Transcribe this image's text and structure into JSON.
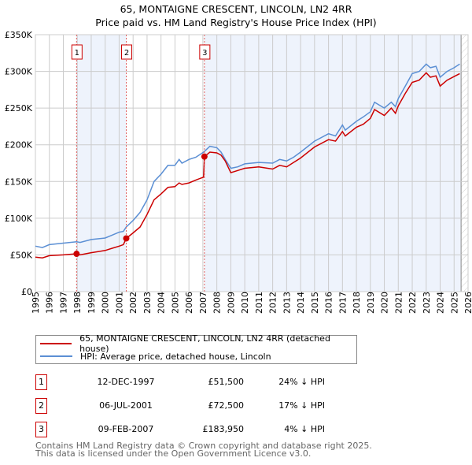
{
  "title_line1": "65, MONTAIGNE CRESCENT, LINCOLN, LN2 4RR",
  "title_line2": "Price paid vs. HM Land Registry's House Price Index (HPI)",
  "chart_data": {
    "type": "line",
    "title": "65, MONTAIGNE CRESCENT, LINCOLN, LN2 4RR — Price paid vs. HM Land Registry's House Price Index (HPI)",
    "xlim": [
      1995,
      2026
    ],
    "ylim": [
      0,
      350000
    ],
    "x_ticks": [
      "1995",
      "1996",
      "1997",
      "1998",
      "1999",
      "2000",
      "2001",
      "2002",
      "2003",
      "2004",
      "2005",
      "2006",
      "2007",
      "2008",
      "2009",
      "2010",
      "2011",
      "2012",
      "2013",
      "2014",
      "2015",
      "2016",
      "2017",
      "2018",
      "2019",
      "2020",
      "2021",
      "2022",
      "2023",
      "2024",
      "2025",
      "2026"
    ],
    "y_ticks": [
      {
        "v": 0,
        "label": "£0"
      },
      {
        "v": 50000,
        "label": "£50K"
      },
      {
        "v": 100000,
        "label": "£100K"
      },
      {
        "v": 150000,
        "label": "£150K"
      },
      {
        "v": 200000,
        "label": "£200K"
      },
      {
        "v": 250000,
        "label": "£250K"
      },
      {
        "v": 300000,
        "label": "£300K"
      },
      {
        "v": 350000,
        "label": "£350K"
      }
    ],
    "grid": true,
    "colors": {
      "property": "#cc0000",
      "hpi": "#5b8fd4",
      "shade": "#eef3fc",
      "marker_line": "#e06060"
    },
    "shaded_ranges": [
      [
        1997.95,
        2001.51
      ],
      [
        2007.11,
        2025.5
      ]
    ],
    "hatched_from": 2025.5,
    "series": [
      {
        "name": "65, MONTAIGNE CRESCENT, LINCOLN, LN2 4RR (detached house)",
        "key": "property",
        "x": [
          1995,
          1995.5,
          1996,
          1997,
          1997.95,
          1998.2,
          1999,
          2000,
          2000.5,
          2001,
          2001.3,
          2001.51,
          2002,
          2002.5,
          2003,
          2003.5,
          2004,
          2004.5,
          2005,
          2005.3,
          2005.5,
          2006,
          2006.5,
          2007.05,
          2007.11,
          2007.5,
          2008,
          2008.3,
          2008.6,
          2009,
          2009.5,
          2010,
          2011,
          2012,
          2012.5,
          2013,
          2013.5,
          2014,
          2015,
          2016,
          2016.5,
          2017,
          2017.2,
          2018,
          2018.5,
          2019,
          2019.3,
          2020,
          2020.5,
          2020.8,
          2021,
          2021.5,
          2022,
          2022.5,
          2023,
          2023.3,
          2023.7,
          2024,
          2024.5,
          2025,
          2025.4
        ],
        "y": [
          47000,
          46000,
          49000,
          50000,
          51500,
          50000,
          53000,
          56000,
          59000,
          62000,
          64000,
          72500,
          80000,
          88000,
          105000,
          125000,
          133000,
          142000,
          143000,
          148000,
          146000,
          148000,
          152000,
          156000,
          183950,
          190000,
          189000,
          186000,
          178000,
          162000,
          165000,
          168000,
          170000,
          167000,
          172000,
          170000,
          176000,
          182000,
          197000,
          207000,
          205000,
          218000,
          212000,
          224000,
          228000,
          236000,
          248000,
          240000,
          250000,
          243000,
          253000,
          270000,
          285000,
          288000,
          298000,
          292000,
          294000,
          280000,
          288000,
          293000,
          297000
        ]
      },
      {
        "name": "HPI: Average price, detached house, Lincoln",
        "key": "hpi",
        "x": [
          1995,
          1995.5,
          1996,
          1997,
          1997.95,
          1998.2,
          1999,
          2000,
          2000.5,
          2001,
          2001.3,
          2001.51,
          2002,
          2002.5,
          2003,
          2003.5,
          2004,
          2004.5,
          2005,
          2005.3,
          2005.5,
          2006,
          2006.5,
          2007.05,
          2007.11,
          2007.5,
          2008,
          2008.3,
          2008.6,
          2009,
          2009.5,
          2010,
          2011,
          2012,
          2012.5,
          2013,
          2013.5,
          2014,
          2015,
          2016,
          2016.5,
          2017,
          2017.2,
          2018,
          2018.5,
          2019,
          2019.3,
          2020,
          2020.5,
          2020.8,
          2021,
          2021.5,
          2022,
          2022.5,
          2023,
          2023.3,
          2023.7,
          2024,
          2024.5,
          2025,
          2025.4
        ],
        "y": [
          62000,
          60000,
          64000,
          66000,
          68000,
          67000,
          71000,
          73000,
          77000,
          81000,
          82000,
          88000,
          97000,
          108000,
          125000,
          150000,
          160000,
          172000,
          172000,
          180000,
          175000,
          180000,
          183000,
          190000,
          191000,
          198000,
          196000,
          190000,
          180000,
          168000,
          170000,
          174000,
          176000,
          175000,
          180000,
          178000,
          183000,
          190000,
          205000,
          215000,
          212000,
          227000,
          220000,
          232000,
          238000,
          245000,
          258000,
          250000,
          258000,
          252000,
          263000,
          280000,
          297000,
          300000,
          310000,
          305000,
          307000,
          292000,
          300000,
          305000,
          310000
        ]
      }
    ],
    "sales": [
      {
        "num": "1",
        "x": 1997.95,
        "y": 51500
      },
      {
        "num": "2",
        "x": 2001.51,
        "y": 72500
      },
      {
        "num": "3",
        "x": 2007.11,
        "y": 183950
      }
    ]
  },
  "legend": {
    "property": "65, MONTAIGNE CRESCENT, LINCOLN, LN2 4RR (detached house)",
    "hpi": "HPI: Average price, detached house, Lincoln"
  },
  "transactions": [
    {
      "num": "1",
      "date": "12-DEC-1997",
      "price": "£51,500",
      "hpi": "24% ↓ HPI"
    },
    {
      "num": "2",
      "date": "06-JUL-2001",
      "price": "£72,500",
      "hpi": "17% ↓ HPI"
    },
    {
      "num": "3",
      "date": "09-FEB-2007",
      "price": "£183,950",
      "hpi": "4% ↓ HPI"
    }
  ],
  "footer": {
    "line1": "Contains HM Land Registry data © Crown copyright and database right 2025.",
    "line2": "This data is licensed under the Open Government Licence v3.0."
  }
}
